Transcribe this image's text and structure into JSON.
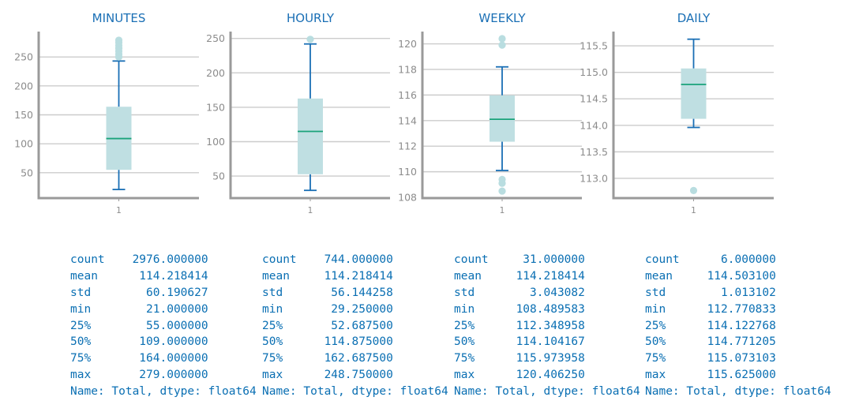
{
  "colors": {
    "title": "#1a6fb5",
    "box_fill": "#bfdfe2",
    "whisker": "#1a6fb5",
    "median": "#1aa37a",
    "flier": "#b9dde0",
    "axis": "#9a9a9a",
    "grid": "#cccccc",
    "tick_label": "#8c8c8c",
    "stats_text": "#0a6fb3"
  },
  "chart_data": [
    {
      "type": "box",
      "title": "MINUTES",
      "category": "1",
      "yticks": [
        "50",
        "100",
        "150",
        "200",
        "250"
      ],
      "ytick_values": [
        50,
        100,
        150,
        200,
        250
      ],
      "ylim": [
        6.1,
        293.9
      ],
      "whisker_low": 21,
      "q1": 55,
      "median": 109,
      "q3": 164,
      "whisker_high": 243,
      "fliers": [
        250,
        255,
        260,
        265,
        270,
        275,
        279
      ]
    },
    {
      "type": "box",
      "title": "HOURLY",
      "category": "1",
      "yticks": [
        "50",
        "100",
        "150",
        "200",
        "250"
      ],
      "ytick_values": [
        50,
        100,
        150,
        200,
        250
      ],
      "ylim": [
        18.0,
        260.0
      ],
      "whisker_low": 29.25,
      "q1": 52.6875,
      "median": 114.875,
      "q3": 162.6875,
      "whisker_high": 242.0,
      "fliers": [
        248.75
      ]
    },
    {
      "type": "box",
      "title": "WEEKLY",
      "category": "1",
      "yticks": [
        "108",
        "110",
        "112",
        "114",
        "116",
        "118",
        "120"
      ],
      "ytick_values": [
        108,
        110,
        112,
        114,
        116,
        118,
        120
      ],
      "ylim": [
        107.94,
        120.96
      ],
      "whisker_low": 110.1,
      "q1": 112.348958,
      "median": 114.104167,
      "q3": 115.973958,
      "whisker_high": 118.2,
      "fliers": [
        108.49,
        109.1,
        109.4,
        119.9,
        120.406
      ]
    },
    {
      "type": "box",
      "title": "DAILY",
      "category": "1",
      "yticks": [
        "113.0",
        "113.5",
        "114.0",
        "114.5",
        "115.0",
        "115.5"
      ],
      "ytick_values": [
        113.0,
        113.5,
        114.0,
        114.5,
        115.0,
        115.5
      ],
      "ylim": [
        112.627,
        115.769
      ],
      "whisker_low": 113.96,
      "q1": 114.122768,
      "median": 114.771205,
      "q3": 115.073103,
      "whisker_high": 115.625,
      "fliers": [
        112.770833
      ]
    }
  ],
  "stats": [
    {
      "lines": [
        "count    2976.000000",
        "mean      114.218414",
        "std        60.190627",
        "min        21.000000",
        "25%        55.000000",
        "50%       109.000000",
        "75%       164.000000",
        "max       279.000000",
        "Name: Total, dtype: float64"
      ]
    },
    {
      "lines": [
        "count    744.000000",
        "mean     114.218414",
        "std       56.144258",
        "min       29.250000",
        "25%       52.687500",
        "50%      114.875000",
        "75%      162.687500",
        "max      248.750000",
        "Name: Total, dtype: float64"
      ]
    },
    {
      "lines": [
        "count     31.000000",
        "mean     114.218414",
        "std        3.043082",
        "min      108.489583",
        "25%      112.348958",
        "50%      114.104167",
        "75%      115.973958",
        "max      120.406250",
        "Name: Total, dtype: float64"
      ]
    },
    {
      "lines": [
        "count      6.000000",
        "mean     114.503100",
        "std        1.013102",
        "min      112.770833",
        "25%      114.122768",
        "50%      114.771205",
        "75%      115.073103",
        "max      115.625000",
        "Name: Total, dtype: float64"
      ]
    }
  ]
}
